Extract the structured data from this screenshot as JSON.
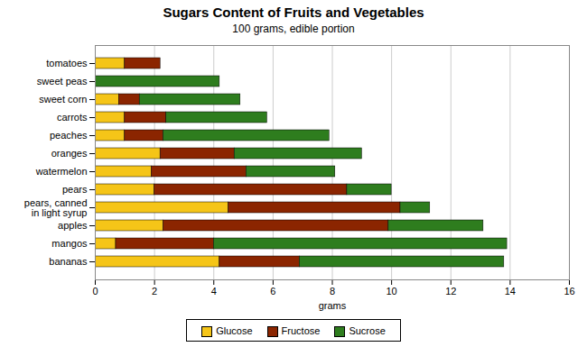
{
  "chart_data": {
    "type": "bar",
    "orientation": "horizontal",
    "stacked": true,
    "title": "Sugars Content of Fruits and Vegetables",
    "subtitle": "100 grams, edible portion",
    "xlabel": "grams",
    "categories": [
      "tomatoes",
      "sweet peas",
      "sweet corn",
      "carrots",
      "peaches",
      "oranges",
      "watermelon",
      "pears",
      "pears, canned\nin light syrup",
      "apples",
      "mangos",
      "bananas"
    ],
    "series": [
      {
        "name": "Glucose",
        "color": "#F5C518",
        "values": [
          1.0,
          0.0,
          0.8,
          1.0,
          1.0,
          2.2,
          1.9,
          2.0,
          4.5,
          2.3,
          0.7,
          4.2
        ]
      },
      {
        "name": "Fructose",
        "color": "#8B2500",
        "values": [
          1.2,
          0.0,
          0.7,
          1.4,
          1.3,
          2.5,
          3.2,
          6.5,
          5.8,
          7.6,
          3.3,
          2.7
        ]
      },
      {
        "name": "Sucrose",
        "color": "#2E7D1E",
        "values": [
          0.0,
          4.2,
          3.4,
          3.4,
          5.6,
          4.3,
          3.0,
          1.5,
          1.0,
          3.2,
          9.9,
          6.9
        ]
      }
    ],
    "xlim": [
      0,
      16
    ],
    "xticks": [
      0,
      2,
      4,
      6,
      8,
      10,
      12,
      14,
      16
    ],
    "grid": true,
    "legend": "bottom"
  }
}
